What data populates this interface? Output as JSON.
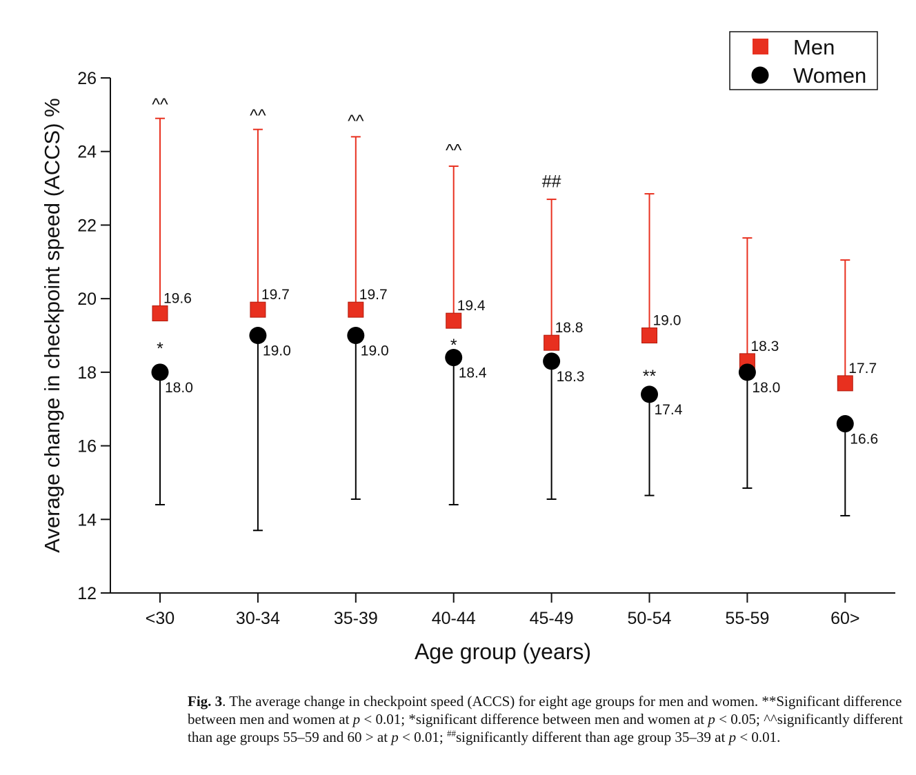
{
  "chart_data": {
    "type": "scatter",
    "xlabel": "Age group (years)",
    "ylabel": "Average change in checkpoint speed (ACCS) %",
    "ylim": [
      12,
      26
    ],
    "yticks": [
      "12",
      "14",
      "16",
      "18",
      "20",
      "22",
      "24",
      "26"
    ],
    "categories": [
      "<30",
      "30-34",
      "35-39",
      "40-44",
      "45-49",
      "50-54",
      "55-59",
      "60>"
    ],
    "legend_position": "top-right",
    "series": [
      {
        "name": "Men",
        "color": "#e8301f",
        "marker": "square",
        "values": [
          19.6,
          19.7,
          19.7,
          19.4,
          18.8,
          19.0,
          18.3,
          17.7
        ],
        "labels": [
          "19.6",
          "19.7",
          "19.7",
          "19.4",
          "18.8",
          "19.0",
          "18.3",
          "17.7"
        ],
        "error_upper": [
          24.9,
          24.6,
          24.4,
          23.6,
          22.7,
          22.85,
          21.65,
          21.05
        ]
      },
      {
        "name": "Women",
        "color": "#000000",
        "marker": "circle",
        "values": [
          18.0,
          19.0,
          19.0,
          18.4,
          18.3,
          17.4,
          18.0,
          16.6
        ],
        "labels": [
          "18.0",
          "19.0",
          "19.0",
          "18.4",
          "18.3",
          "17.4",
          "18.0",
          "16.6"
        ],
        "error_lower": [
          14.4,
          13.7,
          14.55,
          14.4,
          14.55,
          14.65,
          14.85,
          14.1
        ]
      }
    ],
    "annotations": [
      {
        "category": "<30",
        "text": "^^",
        "value": 25.3
      },
      {
        "category": "30-34",
        "text": "^^",
        "value": 25.0
      },
      {
        "category": "35-39",
        "text": "^^",
        "value": 24.85
      },
      {
        "category": "40-44",
        "text": "^^",
        "value": 24.05
      },
      {
        "category": "45-49",
        "text": "##",
        "value": 23.2
      },
      {
        "category": "<30",
        "text": "*",
        "value": 18.65
      },
      {
        "category": "40-44",
        "text": "*",
        "value": 18.75
      },
      {
        "category": "50-54",
        "text": "**",
        "value": 17.9
      }
    ]
  },
  "caption": {
    "fig_label": "Fig. 3",
    "text_1": ". The average change in checkpoint speed (ACCS) for eight age groups for men and women. **Significant difference between men and women at ",
    "p1": "p",
    "text_2": " < 0.01; *significant difference between men and women at ",
    "p2": "p",
    "text_3": " < 0.05; ^^significantly different than age groups 55–59 and 60 > at ",
    "p3": "p",
    "text_4": " < 0.01; ",
    "sup": "##",
    "text_5": "significantly different than age group 35–39 at ",
    "p4": "p",
    "text_6": " < 0.01."
  }
}
